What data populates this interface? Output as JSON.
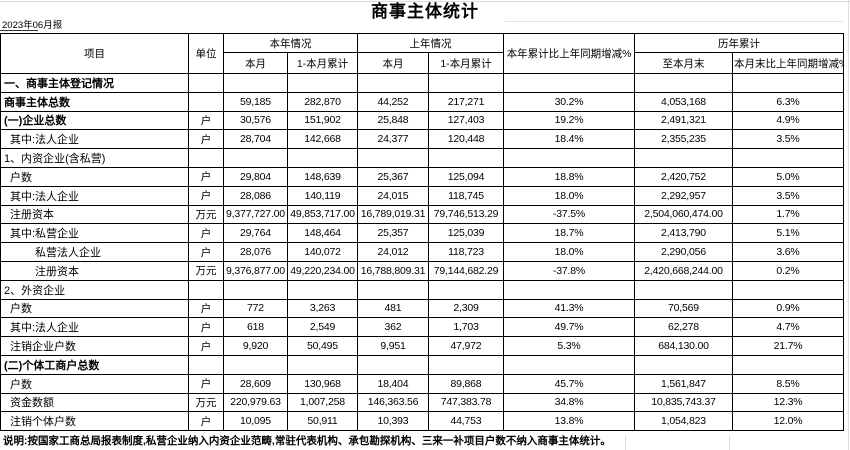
{
  "report": {
    "title": "商事主体统计",
    "period": "2023年06月报",
    "footnote": "说明:按国家工商总局报表制度,私营企业纳入内资企业范畴,常驻代表机构、承包勘探机构、三来一补项目户数不纳入商事主体统计。"
  },
  "table": {
    "headers": {
      "item": "项目",
      "unit": "单位",
      "this_year": {
        "label": "本年情况",
        "month": "本月",
        "cumulative": "1-本月累计"
      },
      "last_year": {
        "label": "上年情况",
        "month": "本月",
        "cumulative": "1-本月累计"
      },
      "ytd_change": "本年累计比上年同期增减%",
      "historical": {
        "label": "历年累计",
        "to_month_end": "至本月末",
        "month_end_change": "本月末比上年同期增减%"
      }
    },
    "rows": [
      {
        "label": "一、商事主体登记情况",
        "indent": 0,
        "bold": true,
        "unit": "",
        "values": [
          "",
          "",
          "",
          "",
          "",
          "",
          ""
        ]
      },
      {
        "label": "商事主体总数",
        "indent": 0,
        "bold": true,
        "unit": "",
        "values": [
          "59,185",
          "282,870",
          "44,252",
          "217,271",
          "30.2%",
          "4,053,168",
          "6.3%"
        ]
      },
      {
        "label": "(一)企业总数",
        "indent": 0,
        "bold": true,
        "unit": "户",
        "values": [
          "30,576",
          "151,902",
          "25,848",
          "127,403",
          "19.2%",
          "2,491,321",
          "4.9%"
        ]
      },
      {
        "label": "其中:法人企业",
        "indent": 1,
        "bold": false,
        "unit": "户",
        "values": [
          "28,704",
          "142,668",
          "24,377",
          "120,448",
          "18.4%",
          "2,355,235",
          "3.5%"
        ]
      },
      {
        "label": "1、内资企业(含私营)",
        "indent": 0,
        "bold": false,
        "unit": "",
        "values": [
          "",
          "",
          "",
          "",
          "",
          "",
          ""
        ]
      },
      {
        "label": "户数",
        "indent": 1,
        "bold": false,
        "unit": "户",
        "values": [
          "29,804",
          "148,639",
          "25,367",
          "125,094",
          "18.8%",
          "2,420,752",
          "5.0%"
        ]
      },
      {
        "label": "其中:法人企业",
        "indent": 1,
        "bold": false,
        "unit": "户",
        "values": [
          "28,086",
          "140,119",
          "24,015",
          "118,745",
          "18.0%",
          "2,292,957",
          "3.5%"
        ]
      },
      {
        "label": "注册资本",
        "indent": 1,
        "bold": false,
        "unit": "万元",
        "values": [
          "9,377,727.00",
          "49,853,717.00",
          "16,789,019.31",
          "79,746,513.29",
          "-37.5%",
          "2,504,060,474.00",
          "1.7%"
        ]
      },
      {
        "label": "其中:私营企业",
        "indent": 1,
        "bold": false,
        "unit": "户",
        "values": [
          "29,764",
          "148,464",
          "25,357",
          "125,039",
          "18.7%",
          "2,413,790",
          "5.1%"
        ]
      },
      {
        "label": "私营法人企业",
        "indent": 2,
        "bold": false,
        "unit": "户",
        "values": [
          "28,076",
          "140,072",
          "24,012",
          "118,723",
          "18.0%",
          "2,290,056",
          "3.6%"
        ]
      },
      {
        "label": "注册资本",
        "indent": 2,
        "bold": false,
        "unit": "万元",
        "values": [
          "9,376,877.00",
          "49,220,234.00",
          "16,788,809.31",
          "79,144,682.29",
          "-37.8%",
          "2,420,668,244.00",
          "0.2%"
        ]
      },
      {
        "label": "2、外资企业",
        "indent": 0,
        "bold": false,
        "unit": "",
        "values": [
          "",
          "",
          "",
          "",
          "",
          "",
          ""
        ]
      },
      {
        "label": "户数",
        "indent": 1,
        "bold": false,
        "unit": "户",
        "values": [
          "772",
          "3,263",
          "481",
          "2,309",
          "41.3%",
          "70,569",
          "0.9%"
        ]
      },
      {
        "label": "其中:法人企业",
        "indent": 1,
        "bold": false,
        "unit": "户",
        "values": [
          "618",
          "2,549",
          "362",
          "1,703",
          "49.7%",
          "62,278",
          "4.7%"
        ]
      },
      {
        "label": "注销企业户数",
        "indent": 1,
        "bold": false,
        "unit": "户",
        "values": [
          "9,920",
          "50,495",
          "9,951",
          "47,972",
          "5.3%",
          "684,130.00",
          "21.7%"
        ]
      },
      {
        "label": "(二)个体工商户总数",
        "indent": 0,
        "bold": true,
        "unit": "",
        "values": [
          "",
          "",
          "",
          "",
          "",
          "",
          ""
        ]
      },
      {
        "label": "户数",
        "indent": 1,
        "bold": false,
        "unit": "户",
        "values": [
          "28,609",
          "130,968",
          "18,404",
          "89,868",
          "45.7%",
          "1,561,847",
          "8.5%"
        ]
      },
      {
        "label": "资金数额",
        "indent": 1,
        "bold": false,
        "unit": "万元",
        "values": [
          "220,979.63",
          "1,007,258",
          "146,363.56",
          "747,383.78",
          "34.8%",
          "10,835,743.37",
          "12.3%"
        ]
      },
      {
        "label": "注销个体户数",
        "indent": 1,
        "bold": false,
        "unit": "户",
        "values": [
          "10,095",
          "50,911",
          "10,393",
          "44,753",
          "13.8%",
          "1,054,823",
          "12.0%"
        ]
      }
    ]
  }
}
